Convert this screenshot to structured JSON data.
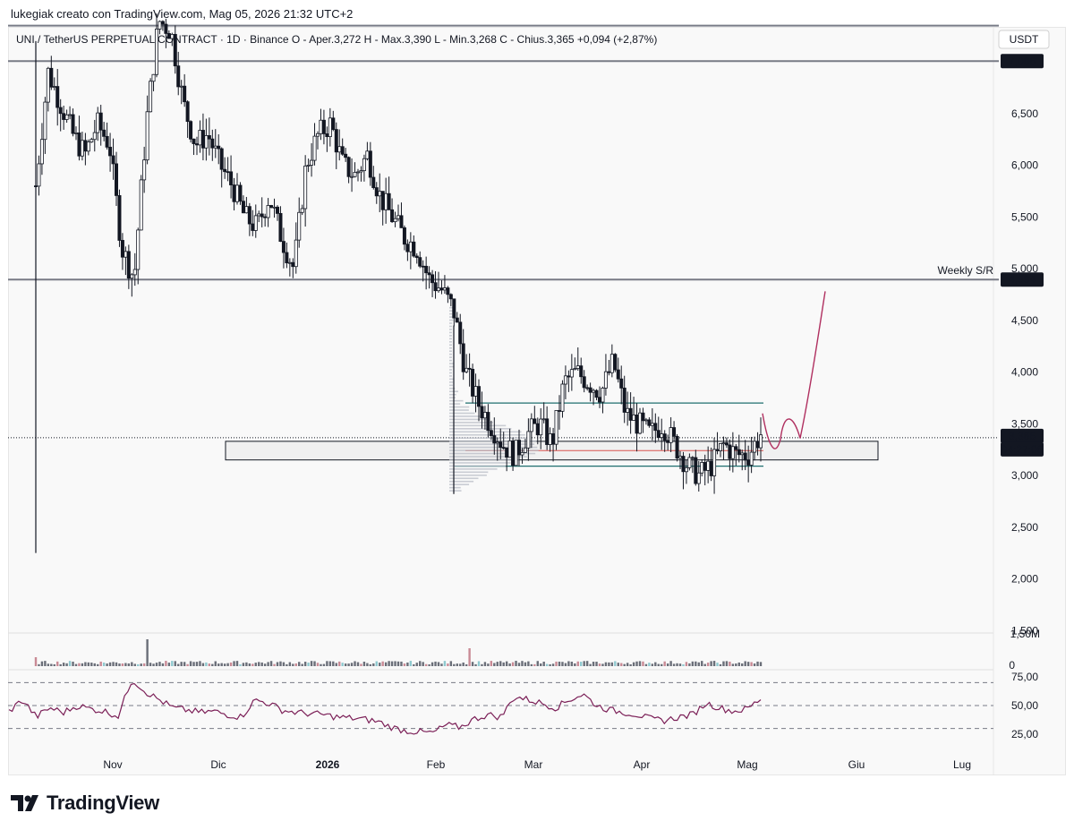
{
  "attribution": "lukegiak creato con TradingView.com, Mag 05, 2026 21:32 UTC+2",
  "legend": "UNI / TetherUS PERPETUAL CONTRACT · 1D · Binance  O - Aper.3,272  H - Max.3,390  L - Min.3,268  C - Chius.3,365  +0,094 (+2,87%)",
  "brand": "TradingView",
  "chart_data": [
    {
      "type": "candlestick",
      "symbol": "UNI / TetherUS PERPETUAL CONTRACT",
      "interval": "1D",
      "exchange": "Binance",
      "ohlc_last": {
        "open": 3.272,
        "high": 3.39,
        "low": 3.268,
        "close": 3.365,
        "change": "+0,094",
        "change_pct": "+2,87%"
      },
      "currency": "USDT",
      "x_ticks": [
        "Nov",
        "Dic",
        "2026",
        "Feb",
        "Mar",
        "Apr",
        "Mag",
        "Giu",
        "Lug"
      ],
      "y_ticks": [
        "6,500",
        "6,000",
        "5,500",
        "5,000",
        "4,500",
        "4,000",
        "3,500",
        "3,000",
        "2,500",
        "2,000",
        "1,500"
      ],
      "ylim": [
        1.5,
        7.3
      ],
      "price_labels": [
        {
          "value": "7,006",
          "style": "dark"
        },
        {
          "value": "4,894",
          "style": "dark"
        },
        {
          "value": "3,365",
          "style": "dark"
        },
        {
          "value": "04:27:06",
          "style": "dark"
        }
      ],
      "horizontal_levels": [
        7.35,
        7.006,
        4.894
      ],
      "annotations": [
        {
          "text": "Weekly S/R",
          "value": 4.894,
          "color": "#2a9aa6"
        }
      ],
      "zone": {
        "low": 3.15,
        "high": 3.33
      },
      "channel": {
        "top": 3.7,
        "mid": 3.24,
        "bottom": 3.09
      },
      "projection": [
        [
          3.365,
          3.6
        ],
        [
          3.42,
          3.2
        ],
        [
          3.62,
          3.3
        ],
        [
          3.36,
          4.78
        ]
      ],
      "closes_approx": [
        5.8,
        6.9,
        6.6,
        6.3,
        6.1,
        6.4,
        6.2,
        5.2,
        4.9,
        6.4,
        7.4,
        7.3,
        6.6,
        6.2,
        6.3,
        6.0,
        5.8,
        5.5,
        5.4,
        5.7,
        5.3,
        5.0,
        6.0,
        6.3,
        6.4,
        6.0,
        5.9,
        6.1,
        5.7,
        5.5,
        5.3,
        5.2,
        4.9,
        4.8,
        4.6,
        4.0,
        3.7,
        3.5,
        3.3,
        3.2,
        3.4,
        3.5,
        3.3,
        3.9,
        4.0,
        3.9,
        3.8,
        4.1,
        3.6,
        3.5,
        3.4,
        3.5,
        3.3,
        3.1,
        3.0,
        3.1,
        3.3,
        3.2,
        3.2,
        3.4
      ]
    },
    {
      "type": "bar",
      "panel": "volume",
      "y_ticks": [
        "1,50M",
        "0"
      ]
    },
    {
      "type": "line",
      "panel": "RSI",
      "y_ticks": [
        "75,00",
        "50,00",
        "25,00"
      ],
      "ylim": [
        15,
        85
      ],
      "bands": [
        70,
        50,
        30
      ],
      "values_approx": [
        45,
        55,
        40,
        48,
        44,
        50,
        47,
        45,
        41,
        73,
        62,
        55,
        48,
        46,
        44,
        45,
        42,
        40,
        55,
        52,
        46,
        44,
        43,
        42,
        40,
        39,
        38,
        36,
        31,
        28,
        27,
        26,
        33,
        31,
        38,
        42,
        40,
        58,
        55,
        52,
        48,
        55,
        60,
        50,
        46,
        44,
        42,
        38,
        37,
        40,
        42,
        52,
        48,
        45,
        47,
        56
      ]
    }
  ],
  "colors": {
    "up": "#ffffff",
    "down": "#131722",
    "wick": "#131722",
    "rsi": "#7b1f57",
    "projection": "#b03060",
    "weekly": "#2a9aa6",
    "channel": "#1f6f6f",
    "mid": "#d9534f"
  }
}
